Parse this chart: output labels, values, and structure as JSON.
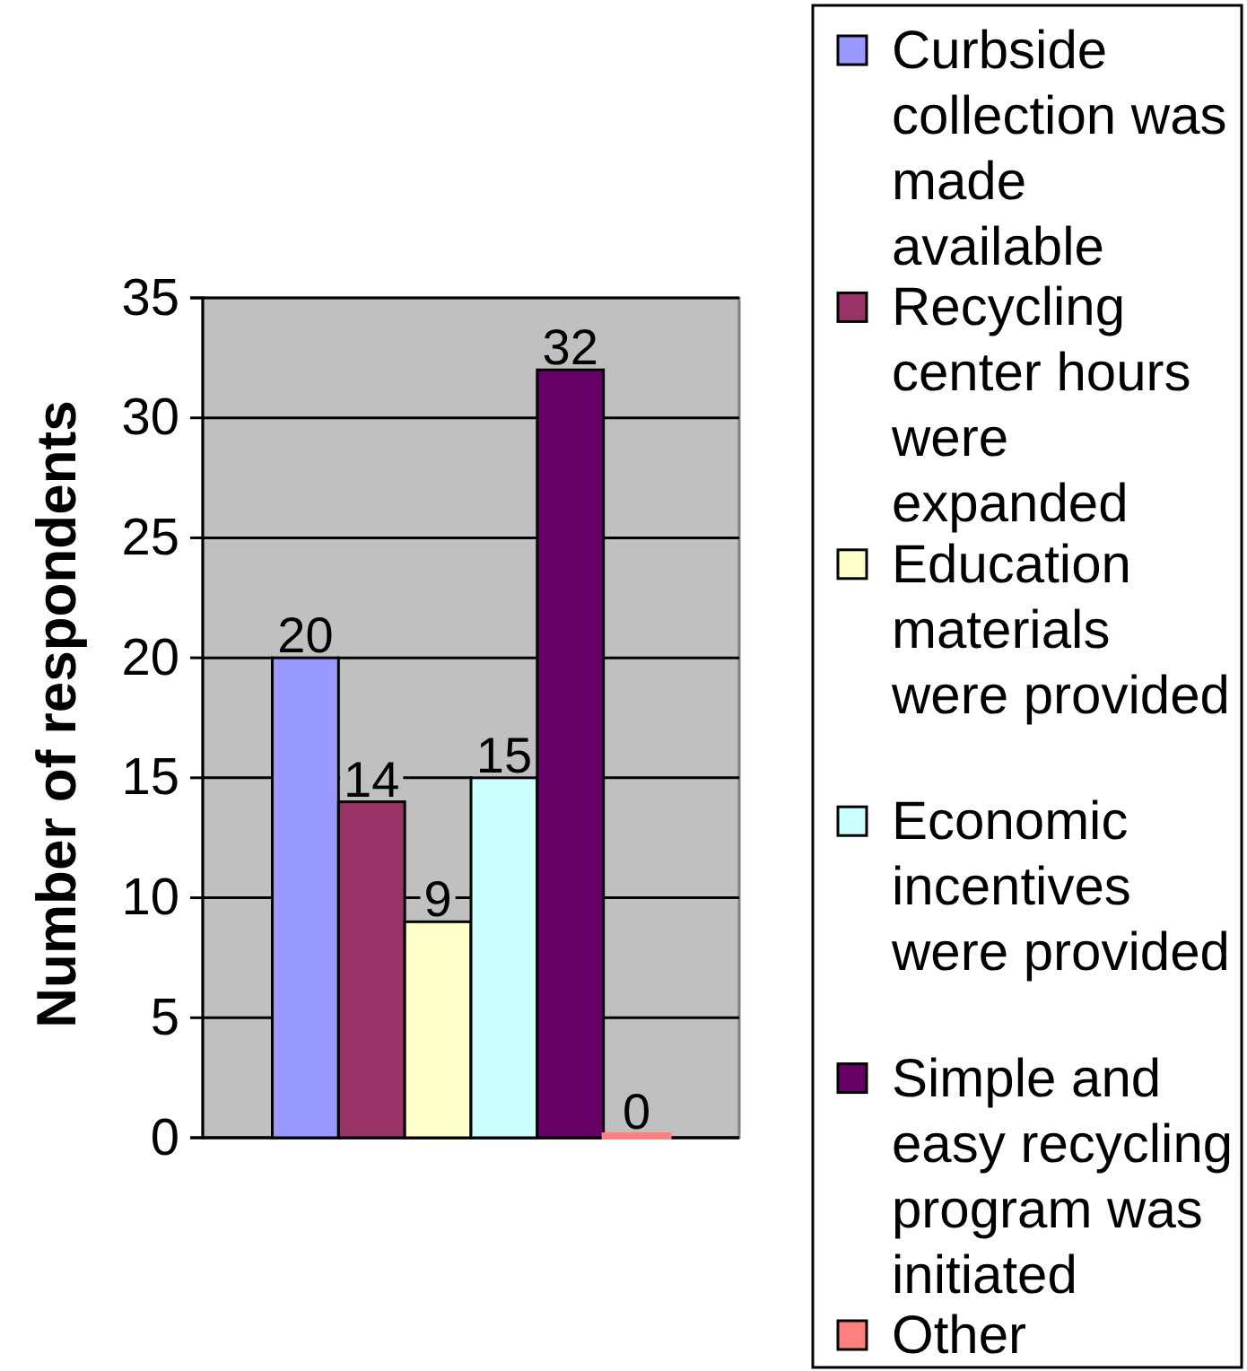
{
  "chart_data": {
    "type": "bar",
    "ylabel": "Number of respondents",
    "categories": [
      null
    ],
    "series": [
      {
        "name": "Curbside collection was made available",
        "color": "#9999ff",
        "values": [
          20
        ]
      },
      {
        "name": "Recycling center hours were expanded",
        "color": "#993366",
        "values": [
          14
        ]
      },
      {
        "name": "Education materials were provided",
        "color": "#ffffcc",
        "values": [
          9
        ]
      },
      {
        "name": "Economic incentives were provided",
        "color": "#ccffff",
        "values": [
          15
        ]
      },
      {
        "name": "Simple and easy recycling program was initiated",
        "color": "#660066",
        "values": [
          32
        ]
      },
      {
        "name": "Other",
        "color": "#ff8080",
        "values": [
          0
        ]
      }
    ],
    "ylim": [
      0,
      35
    ],
    "yticks": [
      0,
      5,
      10,
      15,
      20,
      25,
      30,
      35
    ],
    "grid": true,
    "legend": "right",
    "data_labels": true
  }
}
